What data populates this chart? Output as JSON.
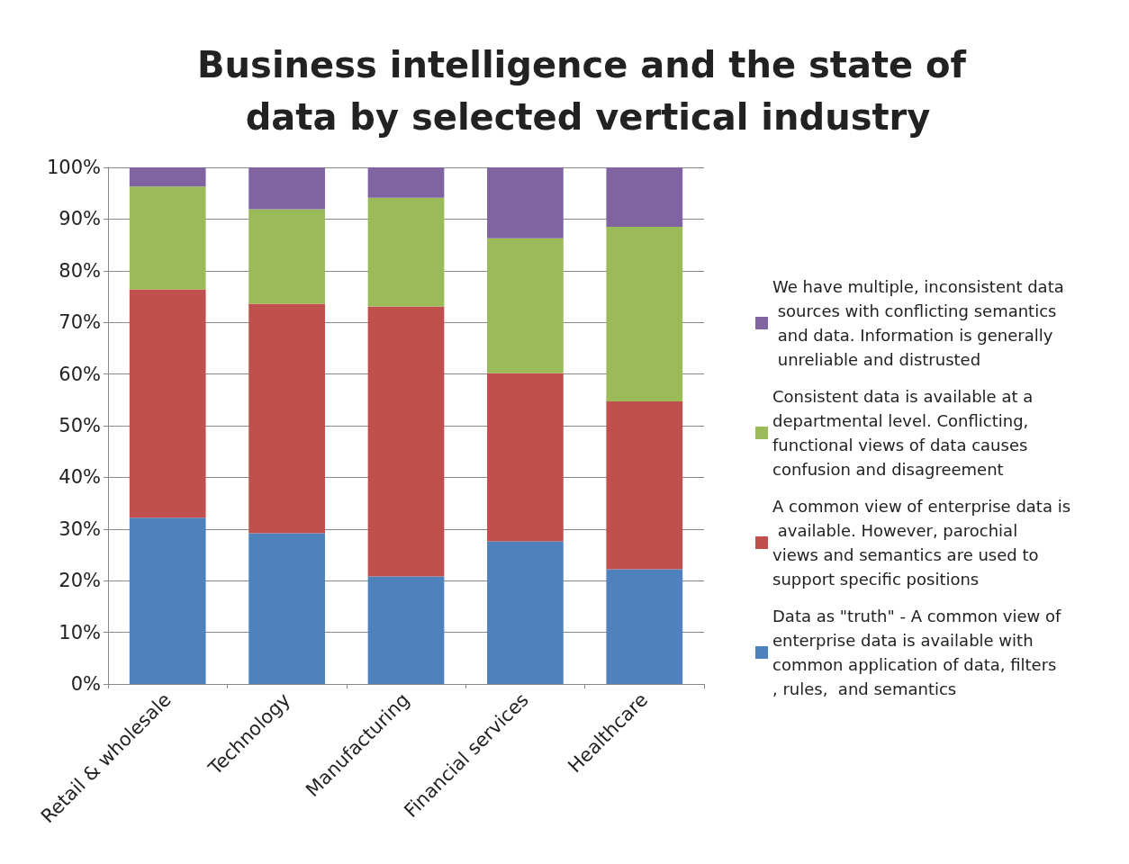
{
  "chart_data": {
    "type": "bar",
    "stacked": true,
    "title": "Business intelligence and the state of data by selected vertical industry",
    "categories": [
      "Retail & wholesale",
      "Technology",
      "Manufacturing",
      "Financial services",
      "Healthcare"
    ],
    "series": [
      {
        "name": "Data as \"truth\" - A common view of enterprise data is available with common application of data, filters, rules,  and semantics",
        "color": "#4f81bd",
        "values": [
          32.2,
          29.2,
          20.8,
          27.6,
          22.2
        ]
      },
      {
        "name": "A common view of enterprise data is available. However, parochial views and semantics are used to support specific positions",
        "color": "#c0504d",
        "values": [
          44.2,
          44.4,
          52.3,
          32.6,
          32.5
        ]
      },
      {
        "name": "Consistent data is available at a departmental level. Conflicting, functional views of data causes confusion and disagreement",
        "color": "#9bbb59",
        "values": [
          19.9,
          18.3,
          21,
          26.1,
          33.8
        ]
      },
      {
        "name": "We have multiple, inconsistent data sources with conflicting semantics and data. Information is generally unreliable and distrusted",
        "color": "#8064a2",
        "values": [
          3.7,
          8.1,
          5.9,
          13.7,
          11.5
        ]
      }
    ],
    "ylim": [
      0,
      100
    ],
    "yticks": [
      {
        "value": 0,
        "label": "0%"
      },
      {
        "value": 10,
        "label": "10%"
      },
      {
        "value": 20,
        "label": "20%"
      },
      {
        "value": 30,
        "label": "30%"
      },
      {
        "value": 40,
        "label": "40%"
      },
      {
        "value": 50,
        "label": "50%"
      },
      {
        "value": 60,
        "label": "60%"
      },
      {
        "value": 70,
        "label": "70%"
      },
      {
        "value": 80,
        "label": "80%"
      },
      {
        "value": 90,
        "label": "90%"
      },
      {
        "value": 100,
        "label": "100%"
      }
    ],
    "grid": "y",
    "legend": "right"
  }
}
